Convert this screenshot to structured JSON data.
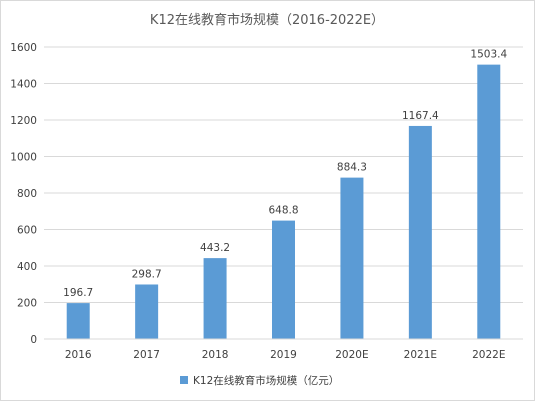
{
  "chart_data": {
    "type": "bar",
    "title": "K12在线教育市场规模（2016-2022E）",
    "categories": [
      "2016",
      "2017",
      "2018",
      "2019",
      "2020E",
      "2021E",
      "2022E"
    ],
    "series": [
      {
        "name": "K12在线教育市场规模（亿元）",
        "values": [
          196.7,
          298.7,
          443.2,
          648.8,
          884.3,
          1167.4,
          1503.4
        ],
        "color": "#5b9bd5"
      }
    ],
    "data_labels": [
      "196.7",
      "298.7",
      "443.2",
      "648.8",
      "884.3",
      "1167.4",
      "1503.4"
    ],
    "ylim": [
      0,
      1600
    ],
    "yticks": [
      0,
      200,
      400,
      600,
      800,
      1000,
      1200,
      1400,
      1600
    ],
    "grid": true,
    "gridline_color": "#d9d9d9",
    "legend_position": "bottom"
  }
}
